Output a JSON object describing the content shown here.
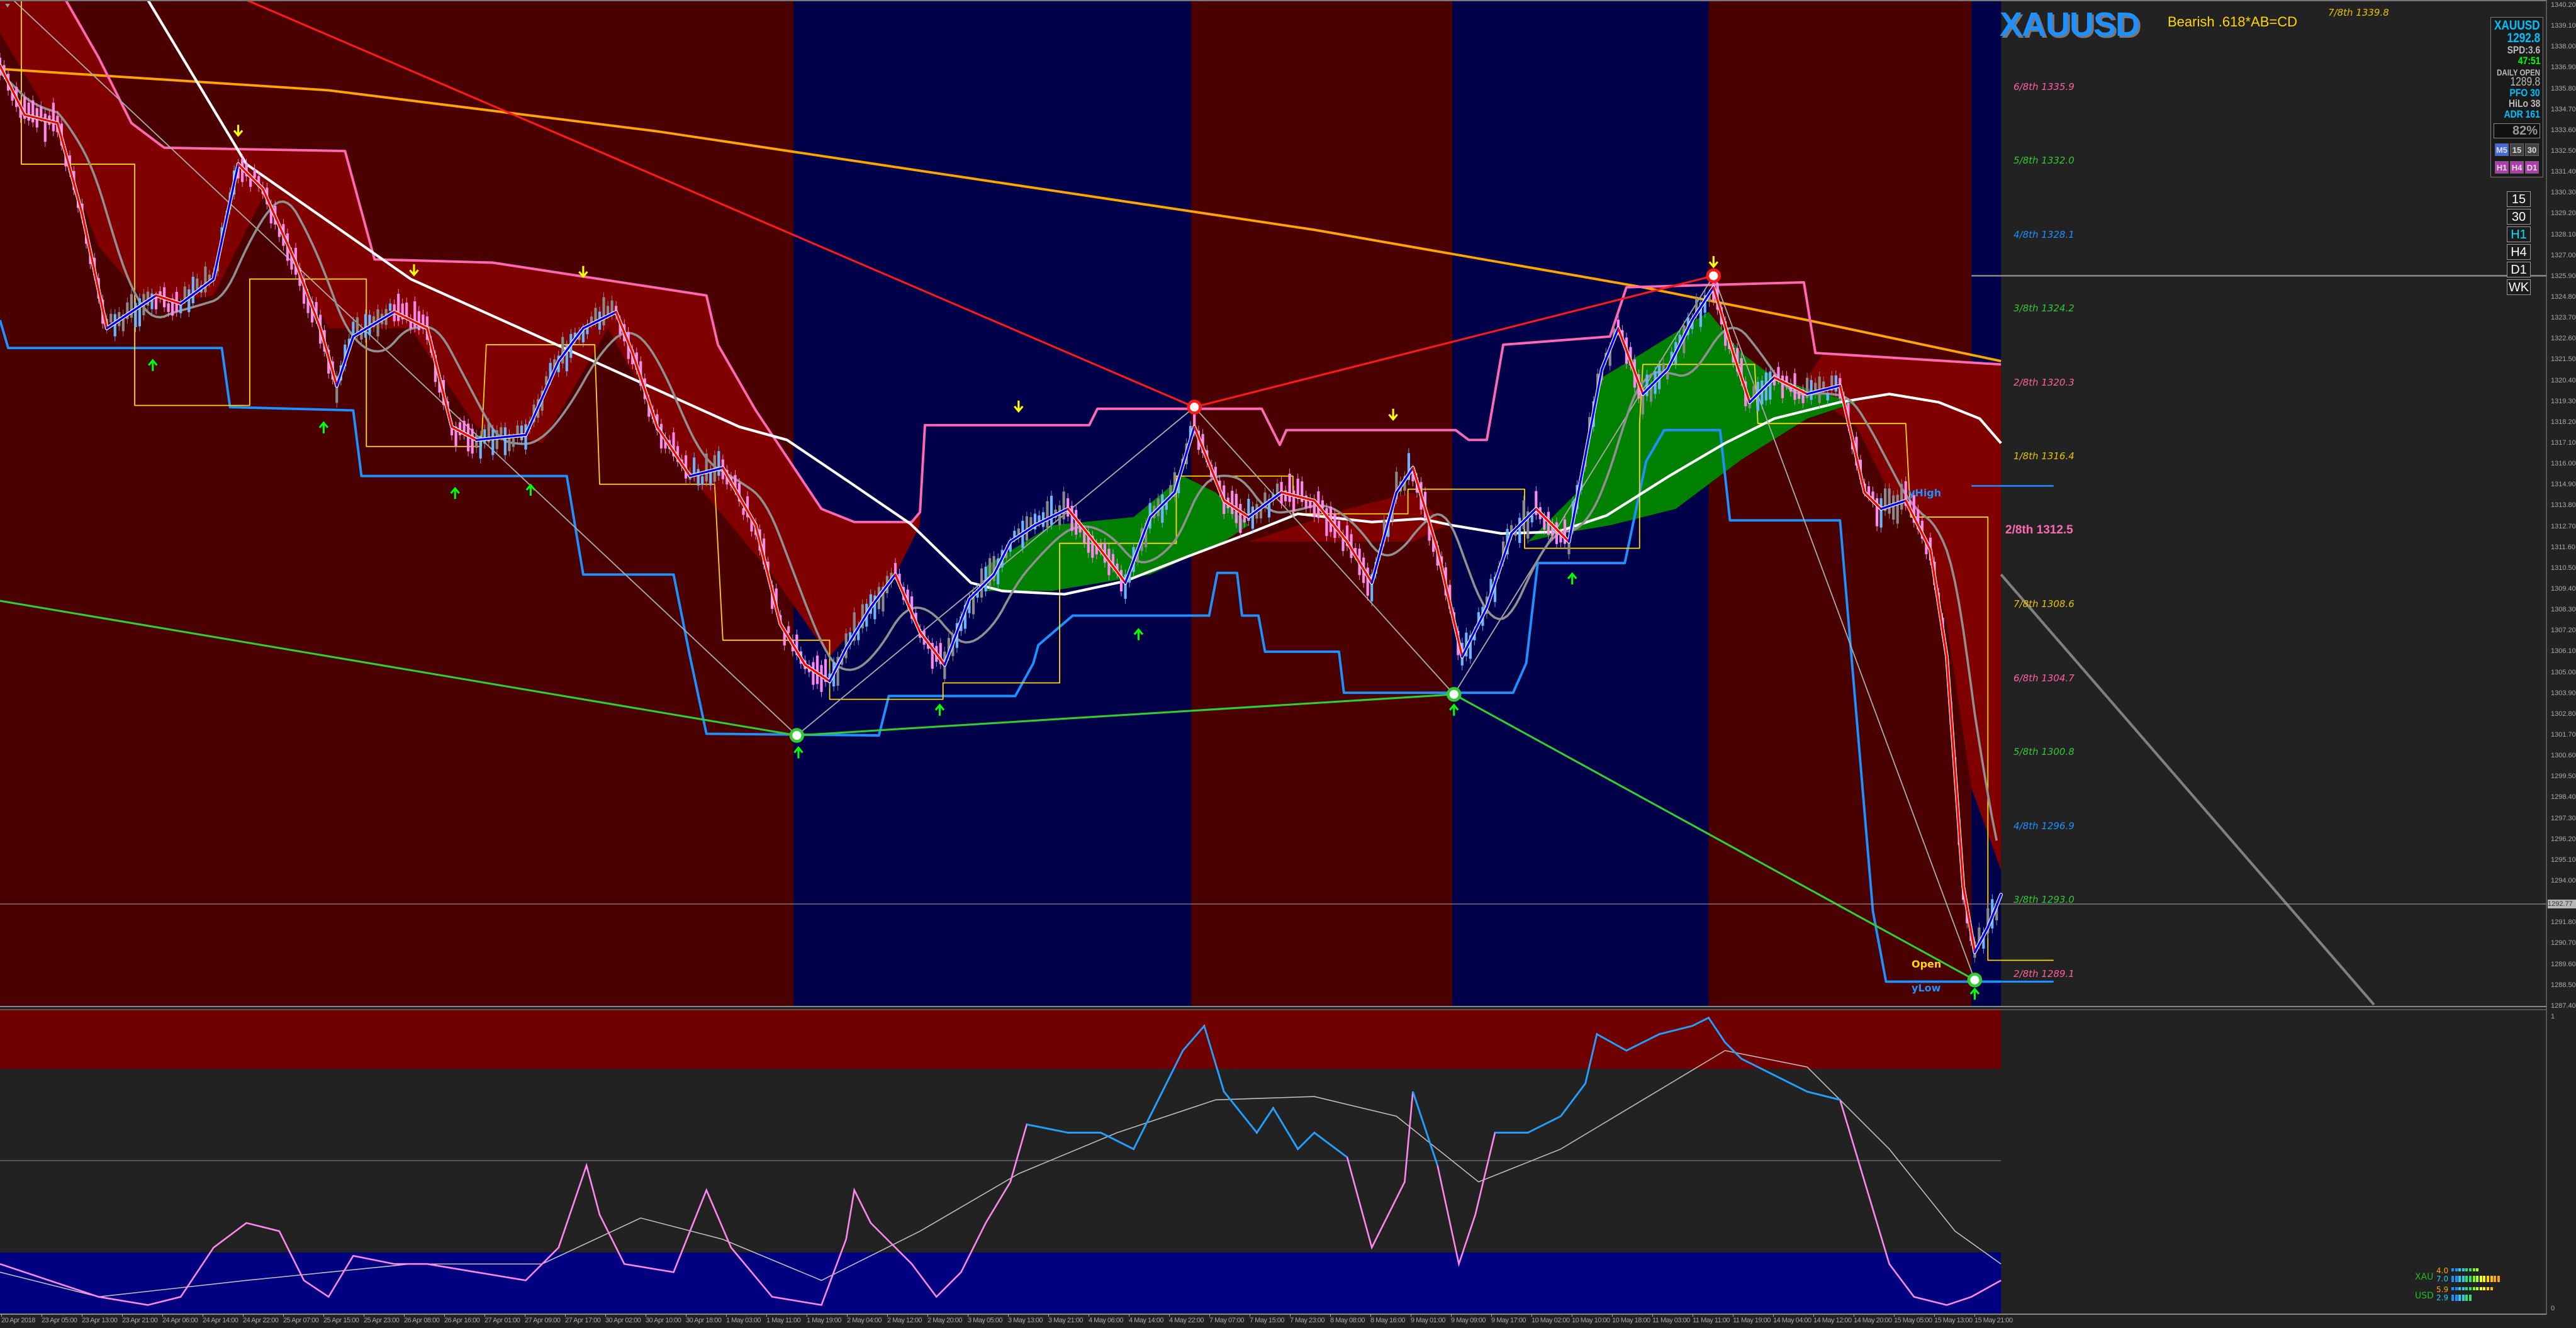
{
  "header": {
    "symbol": "XAUUSD",
    "pattern": "Bearish .618*AB=CD"
  },
  "info_panel": {
    "symbol": "XAUUSD",
    "price": "1292.8",
    "spread": "SPD:3.6",
    "timer": "47:51",
    "daily_open_label": "DAILY OPEN",
    "daily_open": "1289.8",
    "pfo": "PFO  30",
    "hilo": "HiLo  38",
    "adr": "ADR 161",
    "percent": "82%",
    "tf_row1": [
      "M5",
      "15",
      "30"
    ],
    "tf_row2": [
      "H1",
      "H4",
      "D1"
    ]
  },
  "timeframe_buttons": [
    "15",
    "30",
    "H1",
    "H4",
    "D1",
    "WK"
  ],
  "murrey_levels": [
    {
      "label": "7/8th 1339.8",
      "price": 1339.8,
      "color": "#e6c200"
    },
    {
      "label": "6/8th 1335.9",
      "price": 1335.9,
      "color": "#ff5fa0"
    },
    {
      "label": "5/8th 1332.0",
      "price": 1332.0,
      "color": "#32c832"
    },
    {
      "label": "4/8th 1328.1",
      "price": 1328.1,
      "color": "#1e90ff"
    },
    {
      "label": "3/8th 1324.2",
      "price": 1324.2,
      "color": "#32c832"
    },
    {
      "label": "2/8th 1320.3",
      "price": 1320.3,
      "color": "#ff5fa0"
    },
    {
      "label": "1/8th 1316.4",
      "price": 1316.4,
      "color": "#e6c200"
    },
    {
      "label": "2/8th 1312.5",
      "price": 1312.5,
      "color": "#ff69b4",
      "bold": true
    },
    {
      "label": "7/8th 1308.6",
      "price": 1308.6,
      "color": "#e6c200"
    },
    {
      "label": "6/8th 1304.7",
      "price": 1304.7,
      "color": "#ff5fa0"
    },
    {
      "label": "5/8th 1300.8",
      "price": 1300.8,
      "color": "#32c832"
    },
    {
      "label": "4/8th 1296.9",
      "price": 1296.9,
      "color": "#1e90ff"
    },
    {
      "label": "3/8th 1293.0",
      "price": 1293.0,
      "color": "#32c832"
    },
    {
      "label": "2/8th 1289.1",
      "price": 1289.1,
      "color": "#ff5fa0"
    }
  ],
  "annotations": {
    "yhigh": "yHigh",
    "open": "Open",
    "ylow": "yLow"
  },
  "price_axis": {
    "ticks": [
      "1340.20",
      "1339.10",
      "1338.00",
      "1336.90",
      "1335.80",
      "1334.70",
      "1333.60",
      "1332.50",
      "1331.40",
      "1330.30",
      "1329.20",
      "1328.10",
      "1327.00",
      "1325.90",
      "1324.80",
      "1323.70",
      "1322.60",
      "1321.50",
      "1320.40",
      "1319.30",
      "1318.20",
      "1317.10",
      "1316.00",
      "1314.90",
      "1313.80",
      "1312.70",
      "1311.60",
      "1310.50",
      "1309.40",
      "1308.30",
      "1307.20",
      "1306.10",
      "1305.00",
      "1303.90",
      "1302.80",
      "1301.70",
      "1300.60",
      "1299.50",
      "1298.40",
      "1297.30",
      "1296.20",
      "1295.10",
      "1294.00",
      "1291.80",
      "1290.70",
      "1289.60",
      "1288.50",
      "1287.40"
    ],
    "current_price": "1292.77"
  },
  "sub_axis": {
    "top": "1",
    "bottom": "0"
  },
  "time_axis": [
    "20 Apr 2018",
    "23 Apr 05:00",
    "23 Apr 13:00",
    "23 Apr 21:00",
    "24 Apr 06:00",
    "24 Apr 14:00",
    "24 Apr 22:00",
    "25 Apr 07:00",
    "25 Apr 15:00",
    "25 Apr 23:00",
    "26 Apr 08:00",
    "26 Apr 16:00",
    "27 Apr 01:00",
    "27 Apr 09:00",
    "27 Apr 17:00",
    "30 Apr 02:00",
    "30 Apr 10:00",
    "30 Apr 18:00",
    "1 May 03:00",
    "1 May 11:00",
    "1 May 19:00",
    "2 May 04:00",
    "2 May 12:00",
    "2 May 20:00",
    "3 May 05:00",
    "3 May 13:00",
    "3 May 21:00",
    "4 May 06:00",
    "4 May 14:00",
    "4 May 22:00",
    "7 May 07:00",
    "7 May 15:00",
    "7 May 23:00",
    "8 May 08:00",
    "8 May 16:00",
    "9 May 01:00",
    "9 May 09:00",
    "9 May 17:00",
    "10 May 02:00",
    "10 May 10:00",
    "10 May 18:00",
    "11 May 03:00",
    "11 May 11:00",
    "11 May 19:00",
    "14 May 04:00",
    "14 May 12:00",
    "14 May 20:00",
    "15 May 05:00",
    "15 May 13:00",
    "15 May 21:00"
  ],
  "strength": [
    {
      "currency": "XAU",
      "values": [
        "4.0",
        "7.0"
      ],
      "levels": [
        4.0,
        7.0
      ]
    },
    {
      "currency": "USD",
      "values": [
        "5.9",
        "2.9"
      ],
      "levels": [
        5.9,
        2.9
      ]
    }
  ],
  "colors": {
    "bear_band": "#4a0000",
    "bull_band": "#00004a",
    "bear_cloud": "#800000",
    "bull_cloud": "#008000",
    "sub_overbought": "#700000",
    "sub_oversold": "#000080",
    "accent_blue": "#1e90ff",
    "accent_yellow": "#ffd700"
  }
}
